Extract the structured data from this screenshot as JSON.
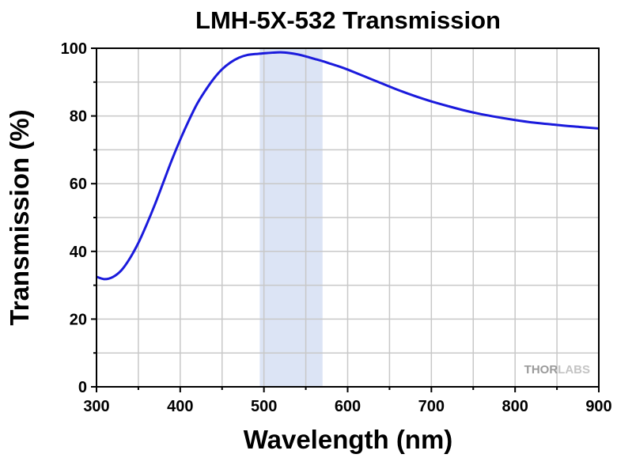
{
  "chart_data": {
    "type": "line",
    "title": "LMH-5X-532 Transmission",
    "xlabel": "Wavelength (nm)",
    "ylabel": "Transmission (%)",
    "xlim": [
      300,
      900
    ],
    "ylim": [
      0,
      100
    ],
    "x_ticks": [
      "300",
      "400",
      "500",
      "600",
      "700",
      "800",
      "900"
    ],
    "y_ticks": [
      "0",
      "20",
      "40",
      "60",
      "80",
      "100"
    ],
    "grid": true,
    "highlight_band": {
      "x_start": 495,
      "x_end": 570,
      "color": "#dce4f5"
    },
    "series": [
      {
        "color": "#1a1adc",
        "x": [
          300,
          310,
          320,
          330,
          340,
          350,
          360,
          370,
          380,
          390,
          400,
          410,
          420,
          430,
          440,
          450,
          460,
          470,
          480,
          490,
          500,
          510,
          520,
          530,
          540,
          550,
          560,
          570,
          580,
          590,
          600,
          620,
          640,
          660,
          680,
          700,
          720,
          740,
          760,
          780,
          800,
          820,
          840,
          860,
          880,
          900
        ],
        "y": [
          32.5,
          31.8,
          32.5,
          34.5,
          38,
          42.5,
          48,
          54,
          60.5,
          67,
          73,
          78.5,
          83.5,
          87.5,
          91,
          93.8,
          95.8,
          97.2,
          98,
          98.3,
          98.5,
          98.7,
          98.8,
          98.6,
          98.2,
          97.6,
          96.9,
          96.2,
          95.4,
          94.6,
          93.7,
          91.7,
          89.7,
          87.7,
          85.9,
          84.3,
          82.9,
          81.6,
          80.5,
          79.6,
          78.8,
          78.1,
          77.6,
          77.1,
          76.7,
          76.3
        ]
      }
    ]
  },
  "watermark": {
    "part1": "THOR",
    "part2": "LABS",
    "color1": "#9a9a9a",
    "color2": "#c4c4c4"
  }
}
